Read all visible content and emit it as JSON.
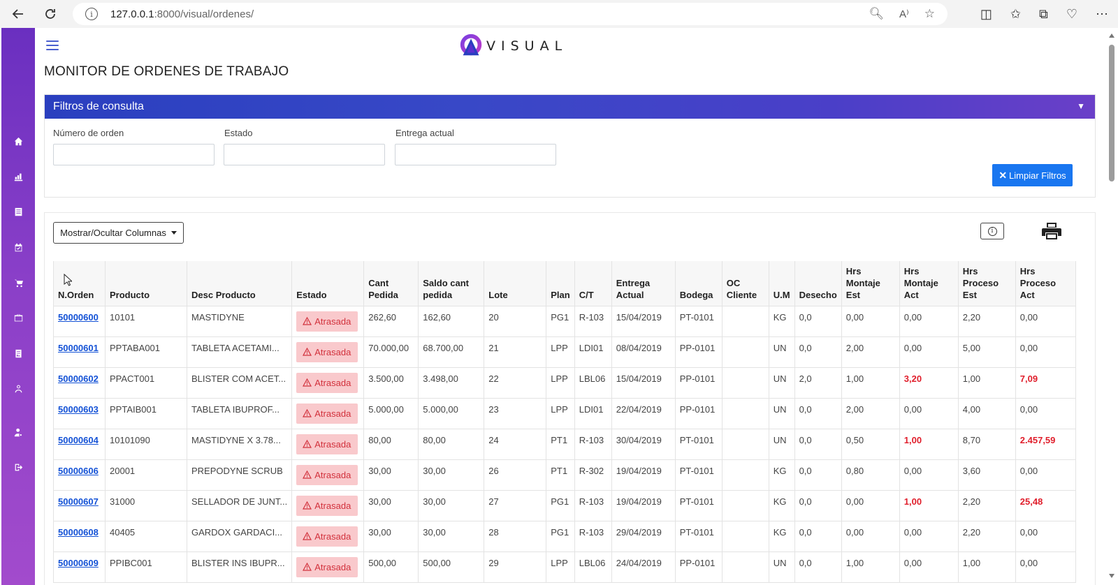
{
  "browser": {
    "url_host": "127.0.0.1",
    "url_rest": ":8000/visual/ordenes/"
  },
  "app": {
    "logo_text": "VISUAL",
    "page_title": "MONITOR DE ORDENES DE TRABAJO"
  },
  "filters": {
    "title": "Filtros de consulta",
    "order_label": "Número de orden",
    "status_label": "Estado",
    "delivery_label": "Entrega actual",
    "order_value": "",
    "status_value": "",
    "delivery_value": "",
    "clear_label": "Limpiar Filtros"
  },
  "toolbar": {
    "columns_label": "Mostrar/Ocultar Columnas"
  },
  "colors": {
    "brand_gradient_start": "#6a2fc0",
    "header_blue": "#2a3fbf",
    "accent_button": "#1976f0",
    "badge_bg": "#f9c9cc",
    "badge_text": "#d2313c"
  },
  "table": {
    "headers": [
      "N.Orden",
      "Producto",
      "Desc Producto",
      "Estado",
      "Cant Pedida",
      "Saldo cant pedida",
      "Lote",
      "Plan",
      "C/T",
      "Entrega Actual",
      "Bodega",
      "OC Cliente",
      "U.M",
      "Desecho",
      "Hrs Montaje Est",
      "Hrs Montaje Act",
      "Hrs Proceso Est",
      "Hrs Proceso Act"
    ],
    "rows": [
      {
        "orden": "50000600",
        "producto": "10101",
        "desc": "MASTIDYNE",
        "estado": "Atrasada",
        "cant": "262,60",
        "saldo": "162,60",
        "lote": "20",
        "plan": "PG1",
        "ct": "R-103",
        "entrega": "15/04/2019",
        "bodega": "PT-0101",
        "oc": "",
        "um": "KG",
        "desecho": "0,0",
        "hme": "0,00",
        "hma": "0,00",
        "hpe": "2,20",
        "hpa": "0,00",
        "hma_red": false,
        "hpa_red": false
      },
      {
        "orden": "50000601",
        "producto": "PPTABA001",
        "desc": "TABLETA ACETAMI...",
        "estado": "Atrasada",
        "cant": "70.000,00",
        "saldo": "68.700,00",
        "lote": "21",
        "plan": "LPP",
        "ct": "LDI01",
        "entrega": "08/04/2019",
        "bodega": "PP-0101",
        "oc": "",
        "um": "UN",
        "desecho": "0,0",
        "hme": "2,00",
        "hma": "0,00",
        "hpe": "5,00",
        "hpa": "0,00",
        "hma_red": false,
        "hpa_red": false
      },
      {
        "orden": "50000602",
        "producto": "PPACT001",
        "desc": "BLISTER COM ACET...",
        "estado": "Atrasada",
        "cant": "3.500,00",
        "saldo": "3.498,00",
        "lote": "22",
        "plan": "LPP",
        "ct": "LBL06",
        "entrega": "15/04/2019",
        "bodega": "PP-0101",
        "oc": "",
        "um": "UN",
        "desecho": "2,0",
        "hme": "1,00",
        "hma": "3,20",
        "hpe": "1,00",
        "hpa": "7,09",
        "hma_red": true,
        "hpa_red": true
      },
      {
        "orden": "50000603",
        "producto": "PPTAIB001",
        "desc": "TABLETA IBUPROF...",
        "estado": "Atrasada",
        "cant": "5.000,00",
        "saldo": "5.000,00",
        "lote": "23",
        "plan": "LPP",
        "ct": "LDI01",
        "entrega": "22/04/2019",
        "bodega": "PP-0101",
        "oc": "",
        "um": "UN",
        "desecho": "0,0",
        "hme": "2,00",
        "hma": "0,00",
        "hpe": "4,00",
        "hpa": "0,00",
        "hma_red": false,
        "hpa_red": false
      },
      {
        "orden": "50000604",
        "producto": "10101090",
        "desc": "MASTIDYNE X 3.78...",
        "estado": "Atrasada",
        "cant": "80,00",
        "saldo": "80,00",
        "lote": "24",
        "plan": "PT1",
        "ct": "R-103",
        "entrega": "30/04/2019",
        "bodega": "PT-0101",
        "oc": "",
        "um": "UN",
        "desecho": "0,0",
        "hme": "0,50",
        "hma": "1,00",
        "hpe": "8,70",
        "hpa": "2.457,59",
        "hma_red": true,
        "hpa_red": true
      },
      {
        "orden": "50000606",
        "producto": "20001",
        "desc": "PREPODYNE SCRUB",
        "estado": "Atrasada",
        "cant": "30,00",
        "saldo": "30,00",
        "lote": "26",
        "plan": "PT1",
        "ct": "R-302",
        "entrega": "19/04/2019",
        "bodega": "PT-0101",
        "oc": "",
        "um": "KG",
        "desecho": "0,0",
        "hme": "0,80",
        "hma": "0,00",
        "hpe": "3,60",
        "hpa": "0,00",
        "hma_red": false,
        "hpa_red": false
      },
      {
        "orden": "50000607",
        "producto": "31000",
        "desc": "SELLADOR DE JUNT...",
        "estado": "Atrasada",
        "cant": "30,00",
        "saldo": "30,00",
        "lote": "27",
        "plan": "PG1",
        "ct": "R-103",
        "entrega": "19/04/2019",
        "bodega": "PT-0101",
        "oc": "",
        "um": "KG",
        "desecho": "0,0",
        "hme": "0,00",
        "hma": "1,00",
        "hpe": "2,20",
        "hpa": "25,48",
        "hma_red": true,
        "hpa_red": true
      },
      {
        "orden": "50000608",
        "producto": "40405",
        "desc": "GARDOX GARDACI...",
        "estado": "Atrasada",
        "cant": "30,00",
        "saldo": "30,00",
        "lote": "28",
        "plan": "PG1",
        "ct": "R-103",
        "entrega": "29/04/2019",
        "bodega": "PT-0101",
        "oc": "",
        "um": "KG",
        "desecho": "0,0",
        "hme": "0,00",
        "hma": "0,00",
        "hpe": "2,20",
        "hpa": "0,00",
        "hma_red": false,
        "hpa_red": false
      },
      {
        "orden": "50000609",
        "producto": "PPIBC001",
        "desc": "BLISTER INS IBUPR...",
        "estado": "Atrasada",
        "cant": "500,00",
        "saldo": "500,00",
        "lote": "29",
        "plan": "LPP",
        "ct": "LBL06",
        "entrega": "24/04/2019",
        "bodega": "PP-0101",
        "oc": "",
        "um": "UN",
        "desecho": "0,0",
        "hme": "1,00",
        "hma": "0,00",
        "hpe": "1,00",
        "hpa": "0,00",
        "hma_red": false,
        "hpa_red": false
      }
    ]
  }
}
